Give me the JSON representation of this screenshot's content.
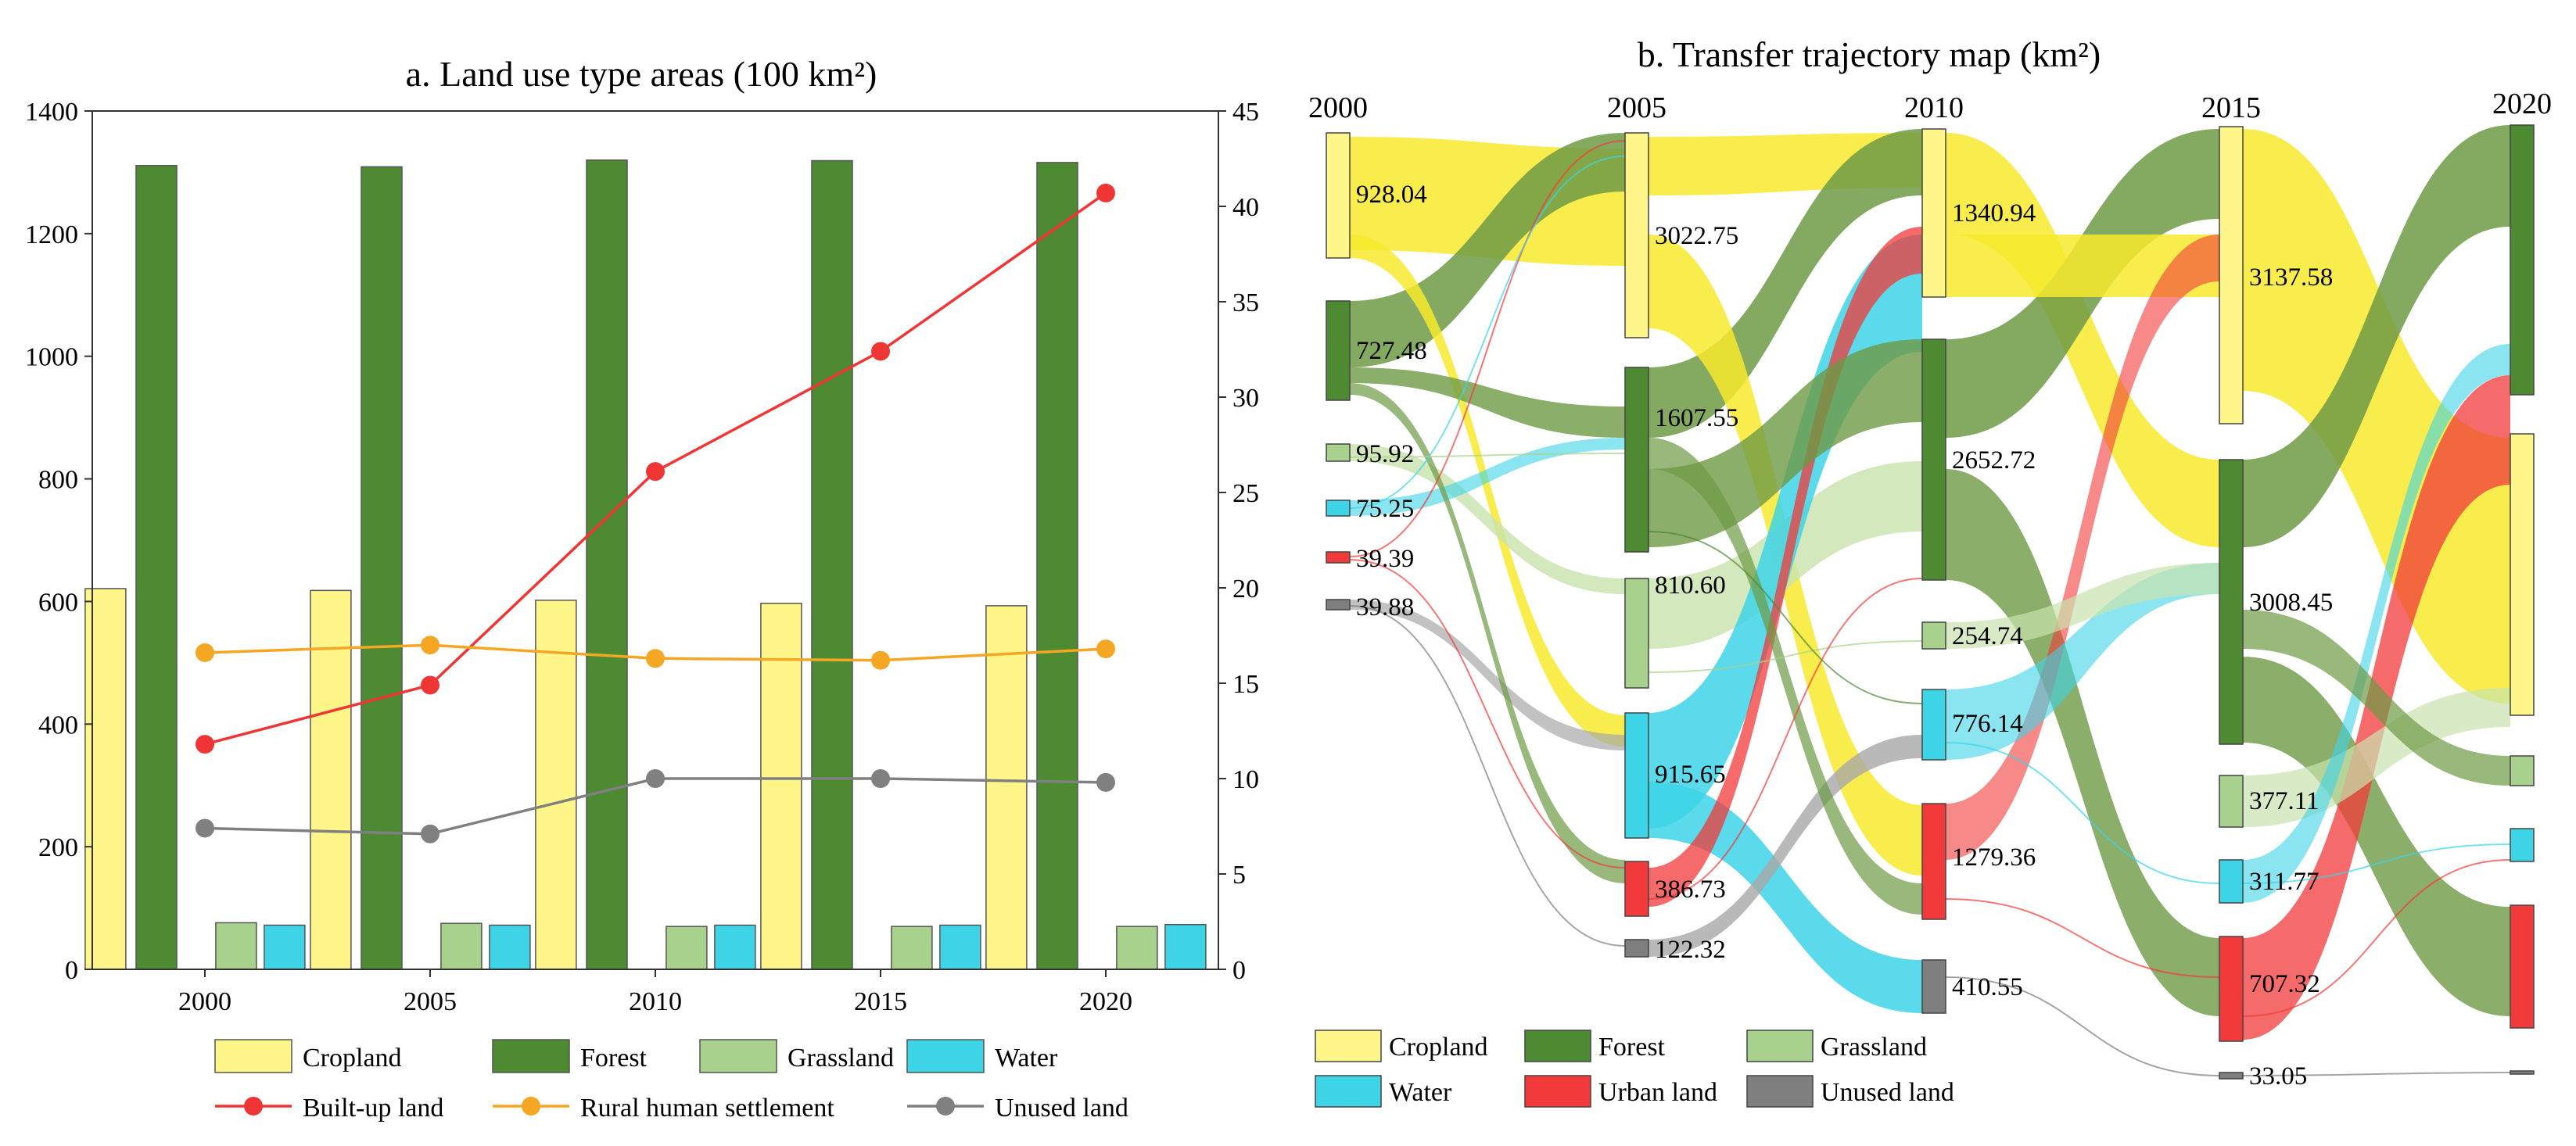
{
  "colors": {
    "cropland": "#FFF68A",
    "cropland_flow": "#F7EA2E",
    "forest": "#4E8A32",
    "forest_flow": "#6E9A45",
    "grassland": "#A9D18E",
    "grassland_flow": "#C9E2AE",
    "water": "#3DD4E8",
    "urban": "#F23A3A",
    "unused": "#7F7F7F",
    "builtup_line": "#F03535",
    "rural_line": "#F5A623",
    "unused_line": "#808080"
  },
  "chart_data": [
    {
      "type": "bar",
      "title": "a. Land use type areas (100 km²)",
      "categories": [
        "2000",
        "2005",
        "2010",
        "2015",
        "2020"
      ],
      "xlabel": "",
      "ylabel": "",
      "ylim": [
        0,
        1400
      ],
      "yticks": [
        "0",
        "200",
        "400",
        "600",
        "800",
        "1000",
        "1200",
        "1400"
      ],
      "y2lim": [
        0,
        45
      ],
      "y2ticks": [
        "0",
        "5",
        "10",
        "15",
        "20",
        "25",
        "30",
        "35",
        "40",
        "45"
      ],
      "grid": false,
      "series": [
        {
          "name": "Cropland",
          "axis": "left",
          "kind": "bar",
          "values": [
            621,
            618,
            602,
            597,
            593
          ]
        },
        {
          "name": "Forest",
          "axis": "left",
          "kind": "bar",
          "values": [
            1311,
            1309,
            1320,
            1319,
            1316
          ]
        },
        {
          "name": "Grassland",
          "axis": "left",
          "kind": "bar",
          "values": [
            76,
            75,
            70,
            70,
            70
          ]
        },
        {
          "name": "Water",
          "axis": "left",
          "kind": "bar",
          "values": [
            72,
            72,
            72,
            72,
            73
          ]
        },
        {
          "name": "Built-up land",
          "axis": "right",
          "kind": "line",
          "values": [
            11.8,
            14.9,
            26.1,
            32.4,
            40.7
          ]
        },
        {
          "name": "Rural human settlement",
          "axis": "right",
          "kind": "line",
          "values": [
            16.6,
            17.0,
            16.3,
            16.2,
            16.8
          ]
        },
        {
          "name": "Unused land",
          "axis": "right",
          "kind": "line",
          "values": [
            7.4,
            7.1,
            10.0,
            10.0,
            9.8
          ]
        }
      ],
      "legend": [
        "Cropland",
        "Forest",
        "Grassland",
        "Water",
        "Built-up land",
        "Rural human settlement",
        "Unused land"
      ],
      "legend_position": "bottom"
    },
    {
      "type": "sankey",
      "title": "b. Transfer trajectory map (km²)",
      "stages": [
        "2000",
        "2005",
        "2010",
        "2015",
        "2020"
      ],
      "nodes": [
        {
          "stage": 0,
          "class": "cropland",
          "value": 928.04,
          "label": "928.04"
        },
        {
          "stage": 0,
          "class": "forest",
          "value": 727.48,
          "label": "727.48"
        },
        {
          "stage": 0,
          "class": "grassland",
          "value": 95.92,
          "label": "95.92"
        },
        {
          "stage": 0,
          "class": "water",
          "value": 75.25,
          "label": "75.25"
        },
        {
          "stage": 0,
          "class": "urban",
          "value": 39.39,
          "label": "39.39"
        },
        {
          "stage": 0,
          "class": "unused",
          "value": 39.88,
          "label": "39.88"
        },
        {
          "stage": 1,
          "class": "cropland",
          "value": 3022.75,
          "label": "3022.75"
        },
        {
          "stage": 1,
          "class": "forest",
          "value": 1607.55,
          "label": "1607.55"
        },
        {
          "stage": 1,
          "class": "grassland",
          "value": 810.6,
          "label": "810.60"
        },
        {
          "stage": 1,
          "class": "water",
          "value": 915.65,
          "label": "915.65"
        },
        {
          "stage": 1,
          "class": "urban",
          "value": 386.73,
          "label": "386.73"
        },
        {
          "stage": 1,
          "class": "unused",
          "value": 122.32,
          "label": "122.32"
        },
        {
          "stage": 2,
          "class": "cropland",
          "value": 1340.94,
          "label": "1340.94"
        },
        {
          "stage": 2,
          "class": "forest",
          "value": 2652.72,
          "label": "2652.72"
        },
        {
          "stage": 2,
          "class": "grassland",
          "value": 254.74,
          "label": "254.74"
        },
        {
          "stage": 2,
          "class": "water",
          "value": 776.14,
          "label": "776.14"
        },
        {
          "stage": 2,
          "class": "urban",
          "value": 1279.36,
          "label": "1279.36"
        },
        {
          "stage": 2,
          "class": "unused",
          "value": 410.55,
          "label": "410.55"
        },
        {
          "stage": 3,
          "class": "cropland",
          "value": 3137.58,
          "label": "3137.58"
        },
        {
          "stage": 3,
          "class": "forest",
          "value": 3008.45,
          "label": "3008.45"
        },
        {
          "stage": 3,
          "class": "grassland",
          "value": 377.11,
          "label": "377.11"
        },
        {
          "stage": 3,
          "class": "water",
          "value": 311.77,
          "label": "311.77"
        },
        {
          "stage": 3,
          "class": "urban",
          "value": 707.32,
          "label": "707.32"
        },
        {
          "stage": 3,
          "class": "unused",
          "value": 33.05,
          "label": "33.05"
        }
      ],
      "legend": [
        {
          "name": "Cropland",
          "class": "cropland"
        },
        {
          "name": "Forest",
          "class": "forest"
        },
        {
          "name": "Grassland",
          "class": "grassland"
        },
        {
          "name": "Water",
          "class": "water"
        },
        {
          "name": "Urban land",
          "class": "urban"
        },
        {
          "name": "Unused land",
          "class": "unused"
        }
      ],
      "legend_position": "bottom"
    }
  ]
}
